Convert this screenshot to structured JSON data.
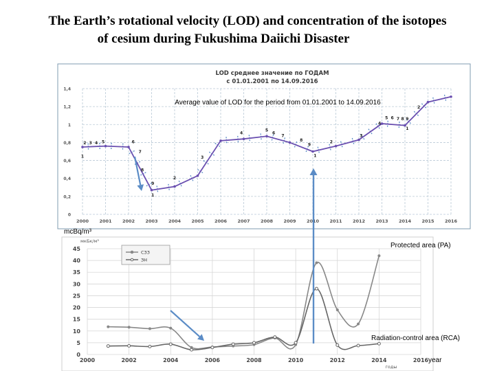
{
  "slide": {
    "title_line1": "The Earth’s rotational velocity (LOD) and concentration of the isotopes",
    "title_line2": "of cesium during Fukushima Daiichi Disaster"
  },
  "chart_data": [
    {
      "type": "line",
      "title_line1": "LOD среднее значение по ГОДАМ",
      "title_line2": "с 01.01.2001 по 14.09.2016",
      "annotation": "Average value of LOD for the period from 01.01.2001 to 14.09.2016",
      "x": [
        2000,
        2001,
        2002,
        2003,
        2004,
        2005,
        2006,
        2007,
        2008,
        2009,
        2010,
        2011,
        2012,
        2013,
        2014,
        2015,
        2016
      ],
      "x_ticks": [
        "2000",
        "2001",
        "2002",
        "2003",
        "2004",
        "2005",
        "2006",
        "2007",
        "2008",
        "2009",
        "2010",
        "2011",
        "2012",
        "2013",
        "2014",
        "2015",
        "2016"
      ],
      "y_ticks": [
        "0",
        "0,2",
        "0,4",
        "0,6",
        "0,8",
        "1",
        "1,2",
        "1,4"
      ],
      "ylim": [
        0,
        1.4
      ],
      "grid": true,
      "series": [
        {
          "color": "#6a4fb0",
          "points": [
            {
              "x": 2000,
              "y": 0.75
            },
            {
              "x": 2001,
              "y": 0.76
            },
            {
              "x": 2002,
              "y": 0.75
            },
            {
              "x": 2003,
              "y": 0.27
            },
            {
              "x": 2004,
              "y": 0.31
            },
            {
              "x": 2005,
              "y": 0.43
            },
            {
              "x": 2006,
              "y": 0.82
            },
            {
              "x": 2007,
              "y": 0.84
            },
            {
              "x": 2008,
              "y": 0.87
            },
            {
              "x": 2009,
              "y": 0.8
            },
            {
              "x": 2010,
              "y": 0.7
            },
            {
              "x": 2011,
              "y": 0.76
            },
            {
              "x": 2012,
              "y": 0.83
            },
            {
              "x": 2013,
              "y": 1.01
            },
            {
              "x": 2014,
              "y": 0.99
            },
            {
              "x": 2015,
              "y": 1.25
            },
            {
              "x": 2016,
              "y": 1.31
            }
          ]
        }
      ],
      "wave_labels": [
        {
          "x": 2000,
          "y": 0.63,
          "text": "1"
        },
        {
          "x": 2000.1,
          "y": 0.78,
          "text": "2"
        },
        {
          "x": 2000.35,
          "y": 0.78,
          "text": "3"
        },
        {
          "x": 2000.6,
          "y": 0.78,
          "text": "4"
        },
        {
          "x": 2000.9,
          "y": 0.79,
          "text": "5"
        },
        {
          "x": 2002.2,
          "y": 0.79,
          "text": "6"
        },
        {
          "x": 2002.5,
          "y": 0.68,
          "text": "7"
        },
        {
          "x": 2002.6,
          "y": 0.48,
          "text": "8"
        },
        {
          "x": 2003.05,
          "y": 0.33,
          "text": "9"
        },
        {
          "x": 2003.05,
          "y": 0.2,
          "text": "1"
        },
        {
          "x": 2004,
          "y": 0.39,
          "text": "2"
        },
        {
          "x": 2005.2,
          "y": 0.62,
          "text": "3"
        },
        {
          "x": 2006.9,
          "y": 0.89,
          "text": "4"
        },
        {
          "x": 2008,
          "y": 0.92,
          "text": "5"
        },
        {
          "x": 2008.3,
          "y": 0.89,
          "text": "6"
        },
        {
          "x": 2008.7,
          "y": 0.86,
          "text": "7"
        },
        {
          "x": 2009.5,
          "y": 0.81,
          "text": "8"
        },
        {
          "x": 2009.85,
          "y": 0.76,
          "text": "9"
        },
        {
          "x": 2010.1,
          "y": 0.64,
          "text": "1"
        },
        {
          "x": 2010.8,
          "y": 0.79,
          "text": "2"
        },
        {
          "x": 2012.1,
          "y": 0.86,
          "text": "3"
        },
        {
          "x": 2012.9,
          "y": 1.0,
          "text": "4"
        },
        {
          "x": 2013.2,
          "y": 1.06,
          "text": "5"
        },
        {
          "x": 2013.45,
          "y": 1.06,
          "text": "6"
        },
        {
          "x": 2013.7,
          "y": 1.05,
          "text": "7"
        },
        {
          "x": 2013.9,
          "y": 1.05,
          "text": "8"
        },
        {
          "x": 2014.1,
          "y": 1.05,
          "text": "9"
        },
        {
          "x": 2014.1,
          "y": 0.94,
          "text": "1"
        },
        {
          "x": 2014.6,
          "y": 1.18,
          "text": "2"
        }
      ]
    },
    {
      "type": "line",
      "ylabel_en": "mcBq/m³",
      "ylabel_ru": "мкБк/м³",
      "xlabel_ru": "годы",
      "xlabel_en": "year",
      "x_ticks": [
        "2000",
        "2002",
        "2004",
        "2006",
        "2008",
        "2010",
        "2012",
        "2014",
        "2016"
      ],
      "y_ticks": [
        "0",
        "5",
        "10",
        "15",
        "20",
        "25",
        "30",
        "35",
        "40",
        "45"
      ],
      "xlim": [
        2000,
        2016
      ],
      "ylim": [
        0,
        45
      ],
      "grid": true,
      "legend_position": "top-left",
      "series": [
        {
          "name": "СЗЗ",
          "color": "#888888",
          "label": "Protected area (PA)",
          "points": [
            {
              "x": 2001,
              "y": 11.8
            },
            {
              "x": 2002,
              "y": 11.6
            },
            {
              "x": 2003,
              "y": 11.0
            },
            {
              "x": 2004,
              "y": 11.2
            },
            {
              "x": 2005,
              "y": 3.0
            },
            {
              "x": 2006,
              "y": 3.2
            },
            {
              "x": 2007,
              "y": 3.6
            },
            {
              "x": 2008,
              "y": 4.2
            },
            {
              "x": 2009,
              "y": 7.0
            },
            {
              "x": 2010,
              "y": 4.2
            },
            {
              "x": 2011,
              "y": 39.0
            },
            {
              "x": 2012,
              "y": 19.0
            },
            {
              "x": 2013,
              "y": 13.0
            },
            {
              "x": 2014,
              "y": 42.0
            }
          ]
        },
        {
          "name": "ЗН",
          "color": "#666666",
          "label": "Radiation-control area (RCA)",
          "points": [
            {
              "x": 2001,
              "y": 3.6
            },
            {
              "x": 2002,
              "y": 3.7
            },
            {
              "x": 2003,
              "y": 3.4
            },
            {
              "x": 2004,
              "y": 4.4
            },
            {
              "x": 2005,
              "y": 2.0
            },
            {
              "x": 2006,
              "y": 3.0
            },
            {
              "x": 2007,
              "y": 4.4
            },
            {
              "x": 2008,
              "y": 5.0
            },
            {
              "x": 2009,
              "y": 7.4
            },
            {
              "x": 2010,
              "y": 5.0
            },
            {
              "x": 2011,
              "y": 28.0
            },
            {
              "x": 2012,
              "y": 4.0
            },
            {
              "x": 2013,
              "y": 3.8
            },
            {
              "x": 2014,
              "y": 4.6
            }
          ]
        }
      ]
    }
  ],
  "colors": {
    "lod_line": "#6a4fb0",
    "grid": "#b9c9d6",
    "arrow": "#5b8cc6",
    "hatch": "#5b8cc6"
  }
}
